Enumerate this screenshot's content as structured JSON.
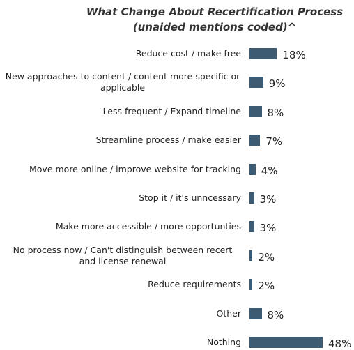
{
  "chart_data": {
    "type": "bar",
    "orientation": "horizontal",
    "title": "What Change About Recertification Process",
    "subtitle": "(unaided mentions coded)^",
    "categories": [
      "Reduce cost / make free",
      "New approaches to content / content more specific or applicable",
      "Less frequent / Expand timeline",
      "Streamline process / make easier",
      "Move more online / improve website for tracking",
      "Stop it / it's unncessary",
      "Make more accessible / more opportunties",
      "No process now / Can't distinguish between recert and license renewal",
      "Reduce requirements",
      "Other",
      "Nothing"
    ],
    "values": [
      18,
      9,
      8,
      7,
      4,
      3,
      3,
      2,
      2,
      8,
      48
    ],
    "value_labels": [
      "18%",
      "9%",
      "8%",
      "7%",
      "4%",
      "3%",
      "3%",
      "2%",
      "2%",
      "8%",
      "48%"
    ],
    "color": "#3e5b74"
  }
}
